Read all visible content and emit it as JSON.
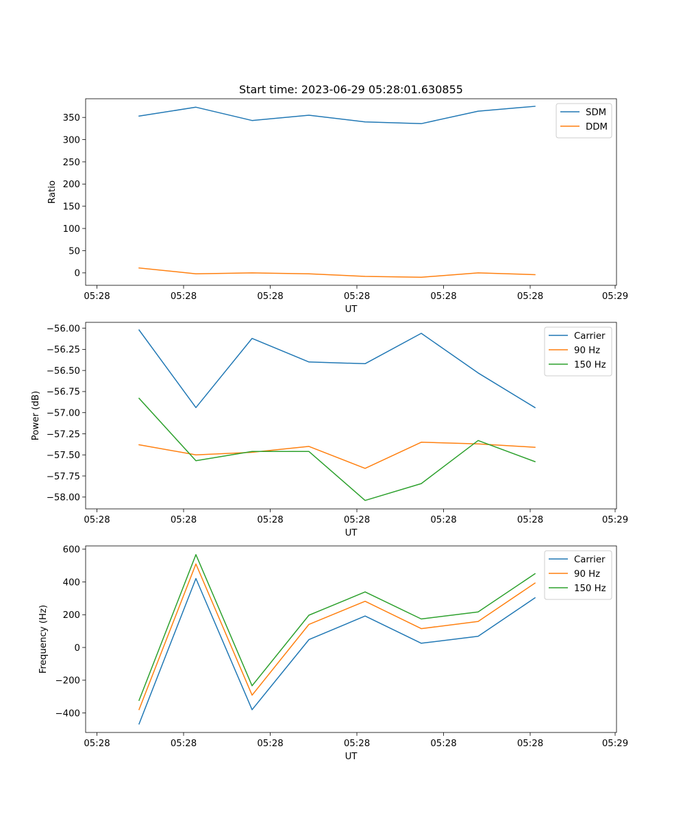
{
  "title": "Start time: 2023-06-29 05:28:01.630855",
  "colors": {
    "blue": "#1f77b4",
    "orange": "#ff7f0e",
    "green": "#2ca02c",
    "axes": "#000000",
    "legend_border": "#cccccc"
  },
  "chart_data": [
    {
      "type": "line",
      "title": "Start time: 2023-06-29 05:28:01.630855",
      "xlabel": "UT",
      "ylabel": "Ratio",
      "x_tick_labels": [
        "05:28",
        "05:28",
        "05:28",
        "05:28",
        "05:28",
        "05:28",
        "05:29"
      ],
      "y_ticks": [
        0,
        50,
        100,
        150,
        200,
        250,
        300,
        350
      ],
      "y_tick_labels": [
        "0",
        "50",
        "100",
        "150",
        "200",
        "250",
        "300",
        "350"
      ],
      "ylim": [
        -28,
        392
      ],
      "legend_position": "top-right",
      "grid": false,
      "series": [
        {
          "name": "SDM",
          "color": "#1f77b4",
          "values": [
            353,
            373,
            343,
            355,
            340,
            336,
            364,
            375
          ]
        },
        {
          "name": "DDM",
          "color": "#ff7f0e",
          "values": [
            11,
            -2,
            0,
            -2,
            -8,
            -10,
            0,
            -4
          ]
        }
      ]
    },
    {
      "type": "line",
      "xlabel": "UT",
      "ylabel": "Power (dB)",
      "x_tick_labels": [
        "05:28",
        "05:28",
        "05:28",
        "05:28",
        "05:28",
        "05:28",
        "05:29"
      ],
      "y_ticks": [
        -58.0,
        -57.75,
        -57.5,
        -57.25,
        -57.0,
        -56.75,
        -56.5,
        -56.25,
        -56.0
      ],
      "y_tick_labels": [
        "−58.00",
        "−57.75",
        "−57.50",
        "−57.25",
        "−57.00",
        "−56.75",
        "−56.50",
        "−56.25",
        "−56.00"
      ],
      "ylim": [
        -58.14,
        -55.93
      ],
      "legend_position": "top-right",
      "grid": false,
      "series": [
        {
          "name": "Carrier",
          "color": "#1f77b4",
          "values": [
            -56.02,
            -56.94,
            -56.12,
            -56.4,
            -56.42,
            -56.06,
            -56.53,
            -56.94
          ]
        },
        {
          "name": "90 Hz",
          "color": "#ff7f0e",
          "values": [
            -57.38,
            -57.5,
            -57.47,
            -57.4,
            -57.66,
            -57.35,
            -57.37,
            -57.41
          ]
        },
        {
          "name": "150 Hz",
          "color": "#2ca02c",
          "values": [
            -56.83,
            -57.57,
            -57.46,
            -57.46,
            -58.04,
            -57.84,
            -57.33,
            -57.58
          ]
        }
      ]
    },
    {
      "type": "line",
      "xlabel": "UT",
      "ylabel": "Frequency (Hz)",
      "x_tick_labels": [
        "05:28",
        "05:28",
        "05:28",
        "05:28",
        "05:28",
        "05:28",
        "05:29"
      ],
      "y_ticks": [
        -400,
        -200,
        0,
        200,
        400,
        600
      ],
      "y_tick_labels": [
        "−400",
        "−200",
        "0",
        "200",
        "400",
        "600"
      ],
      "ylim": [
        -519,
        620
      ],
      "legend_position": "top-right",
      "grid": false,
      "series": [
        {
          "name": "Carrier",
          "color": "#1f77b4",
          "values": [
            -467,
            421,
            -380,
            48,
            192,
            26,
            68,
            303
          ]
        },
        {
          "name": "90 Hz",
          "color": "#ff7f0e",
          "values": [
            -379,
            510,
            -291,
            141,
            282,
            115,
            159,
            393
          ]
        },
        {
          "name": "150 Hz",
          "color": "#2ca02c",
          "values": [
            -323,
            567,
            -234,
            197,
            339,
            174,
            217,
            450
          ]
        }
      ]
    }
  ]
}
